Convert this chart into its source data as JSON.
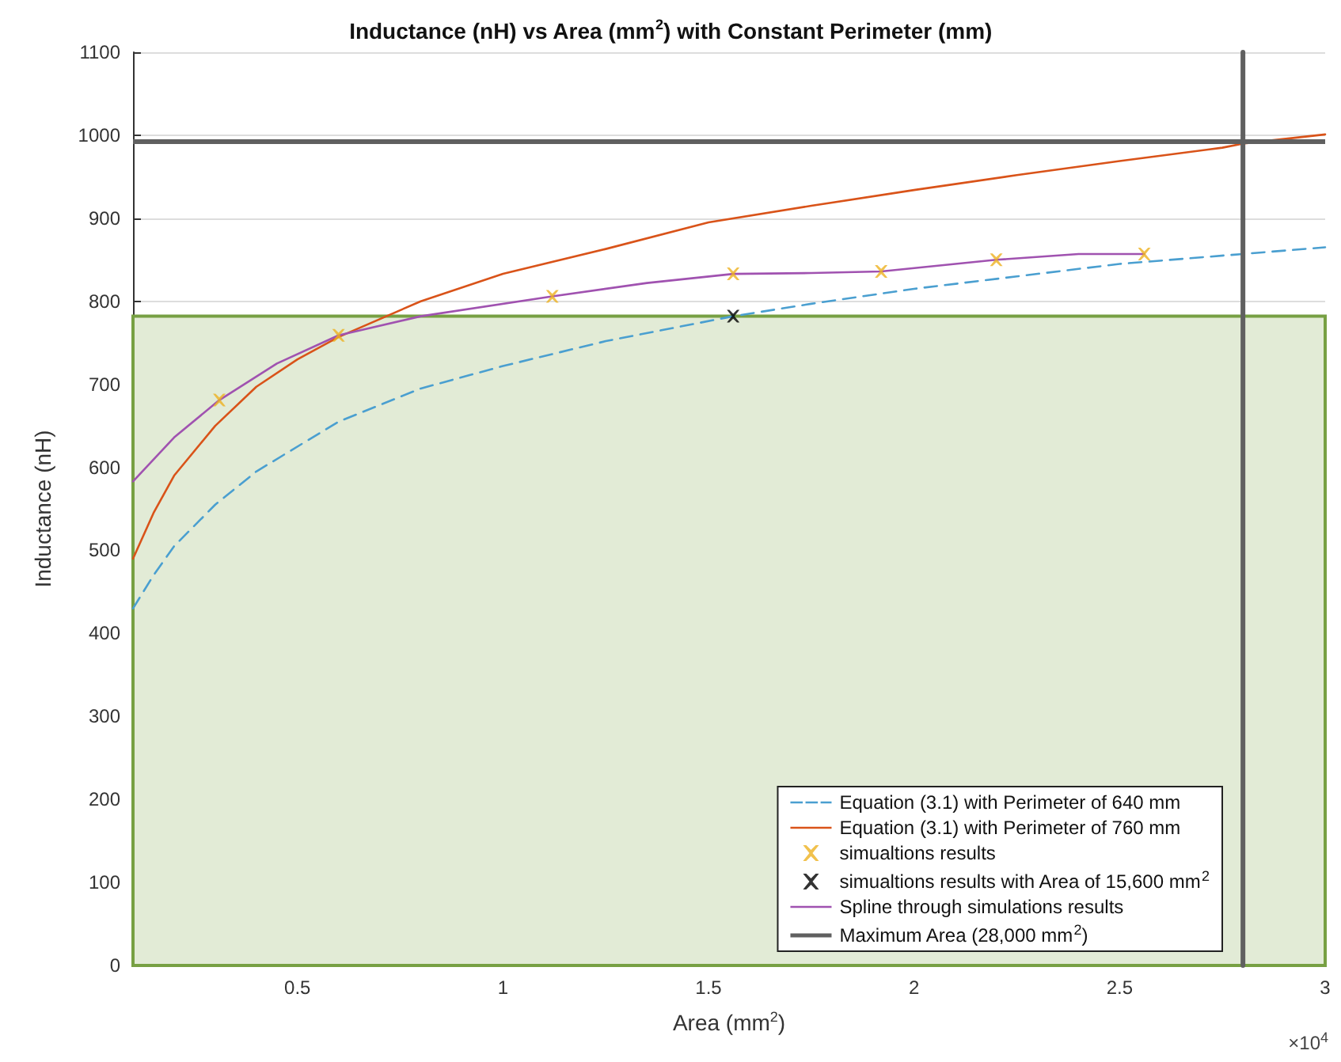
{
  "chart_data": {
    "type": "line",
    "title": "Inductance (nH) vs Area (mm$^{2}$) with Constant Perimeter (mm)",
    "xlabel": "Area (mm$^{2}$)",
    "ylabel": "Inductance (nH)",
    "annotations": [
      "×10$^{4}$"
    ],
    "xlim": [
      0.1,
      3
    ],
    "xticks": [
      0.5,
      1,
      1.5,
      2,
      2.5,
      3
    ],
    "ylim": [
      0,
      1100
    ],
    "yticks": [
      0,
      100,
      200,
      300,
      400,
      500,
      600,
      700,
      800,
      900,
      1000,
      1100
    ],
    "grid": "y",
    "legend": "bottom right",
    "bands": [
      {
        "axis": "y",
        "from": 0,
        "to": 782,
        "color": "#e2ebd6"
      }
    ],
    "ref_lines": [
      {
        "axis": "y",
        "value": 993,
        "color": "#606060"
      }
    ],
    "series": [
      {
        "name": "Equation (3.1) with Perimeter of 640 mm",
        "color": "#4a9fd0",
        "line_style": "dashed",
        "marker": "none",
        "x": [
          0.1,
          0.15,
          0.2,
          0.3,
          0.4,
          0.6,
          0.8,
          1,
          1.25,
          1.56,
          1.75,
          2,
          2.25,
          2.5,
          2.8,
          3
        ],
        "values": [
          430,
          470,
          505,
          555,
          595,
          655,
          695,
          722,
          752,
          782,
          797,
          815,
          830,
          845,
          857,
          865
        ]
      },
      {
        "name": "Equation (3.1) with Perimeter of 760 mm",
        "color": "#d95319",
        "line_style": "solid",
        "marker": "none",
        "x": [
          0.1,
          0.15,
          0.2,
          0.3,
          0.4,
          0.5,
          0.6,
          0.8,
          1,
          1.25,
          1.5,
          1.75,
          2,
          2.25,
          2.5,
          2.75,
          2.8,
          3
        ],
        "values": [
          490,
          545,
          590,
          650,
          697,
          730,
          757,
          800,
          833,
          863,
          895,
          915,
          934,
          952,
          969,
          985,
          990,
          1001
        ]
      },
      {
        "name": "simualtions results",
        "type": "scatter",
        "color": "#edb120",
        "marker": "cross",
        "x": [
          0.31,
          0.6,
          1.12,
          1.56,
          1.92,
          2.2,
          2.56
        ],
        "values": [
          681,
          759,
          806,
          833,
          836,
          850,
          857
        ]
      },
      {
        "name": "simualtions results with Area of 15,600 mm$^{2}$",
        "type": "scatter",
        "color": "#000000",
        "marker": "cross",
        "x": [
          1.56
        ],
        "values": [
          782
        ]
      },
      {
        "name": "Spline through simulations results",
        "color": "#a052b0",
        "line_style": "solid",
        "marker": "none",
        "x": [
          0.1,
          0.2,
          0.31,
          0.45,
          0.6,
          0.8,
          1.12,
          1.35,
          1.56,
          1.75,
          1.92,
          2.2,
          2.4,
          2.56
        ],
        "values": [
          583,
          636,
          681,
          725,
          759,
          782,
          806,
          822,
          833,
          834,
          836,
          850,
          857,
          857
        ]
      },
      {
        "name": "Maximum Area (28,000 mm$^{2}$)",
        "color": "#606060",
        "line_style": "solid",
        "marker": "none",
        "x": [
          2.8,
          2.8
        ],
        "values": [
          0,
          1100
        ]
      }
    ]
  }
}
